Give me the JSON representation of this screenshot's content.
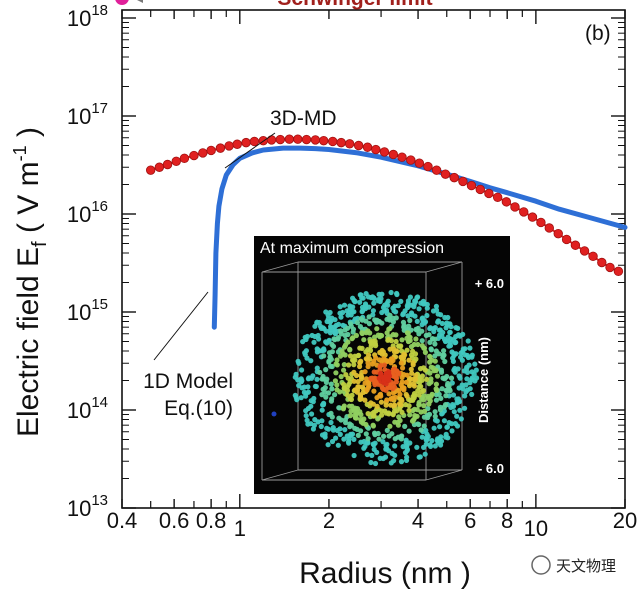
{
  "chart_data": {
    "type": "line",
    "panel_label": "(b)",
    "xlabel": "Radius (nm )",
    "ylabel_main": "Electric field E",
    "ylabel_sub": "f",
    "ylabel_units": "( V m",
    "ylabel_units_exp": "-1",
    "ylabel_units_close": ")",
    "x_scale": "log",
    "y_scale": "log",
    "xlim": [
      0.4,
      20
    ],
    "ylim": [
      10000000000000.0,
      1e+18
    ],
    "x_ticks": [
      {
        "value": 0.4,
        "label": "0.4",
        "major": false
      },
      {
        "value": 0.6,
        "label": "0.6",
        "major": false
      },
      {
        "value": 0.8,
        "label": "0.8",
        "major": false
      },
      {
        "value": 1,
        "label": "1",
        "major": true
      },
      {
        "value": 2,
        "label": "2",
        "major": false
      },
      {
        "value": 4,
        "label": "4",
        "major": false
      },
      {
        "value": 6,
        "label": "6",
        "major": false
      },
      {
        "value": 8,
        "label": "8",
        "major": false
      },
      {
        "value": 10,
        "label": "10",
        "major": true
      },
      {
        "value": 20,
        "label": "20",
        "major": false
      }
    ],
    "y_ticks": [
      {
        "exp": 13,
        "base": "10",
        "sup": "13"
      },
      {
        "exp": 14,
        "base": "10",
        "sup": "14"
      },
      {
        "exp": 15,
        "base": "10",
        "sup": "15"
      },
      {
        "exp": 16,
        "base": "10",
        "sup": "16"
      },
      {
        "exp": 17,
        "base": "10",
        "sup": "17"
      },
      {
        "exp": 18,
        "base": "10",
        "sup": "18"
      }
    ],
    "series": [
      {
        "name": "3D-MD",
        "color": "#e02020",
        "style": "markers+line",
        "x": [
          0.5,
          0.535,
          0.57,
          0.61,
          0.65,
          0.7,
          0.75,
          0.8,
          0.86,
          0.92,
          0.98,
          1.05,
          1.12,
          1.2,
          1.28,
          1.37,
          1.47,
          1.57,
          1.68,
          1.8,
          1.92,
          2.06,
          2.2,
          2.35,
          2.52,
          2.7,
          2.88,
          3.08,
          3.3,
          3.53,
          3.78,
          4.04,
          4.32,
          4.62,
          4.95,
          5.3,
          5.67,
          6.06,
          6.49,
          6.94,
          7.43,
          7.95,
          8.5,
          9.1,
          9.74,
          10.4,
          11.1,
          11.9,
          12.7,
          13.6,
          14.6,
          15.6,
          16.7,
          17.8,
          19.0
        ],
        "y": [
          2.8e+16,
          3e+16,
          3.2e+16,
          3.45e+16,
          3.7e+16,
          3.95e+16,
          4.2e+16,
          4.45e+16,
          4.7e+16,
          4.95e+16,
          5.15e+16,
          5.35e+16,
          5.5e+16,
          5.6e+16,
          5.7e+16,
          5.75e+16,
          5.8e+16,
          5.8e+16,
          5.75e+16,
          5.7e+16,
          5.6e+16,
          5.5e+16,
          5.35e+16,
          5.2e+16,
          5e+16,
          4.8e+16,
          4.55e+16,
          4.3e+16,
          4.05e+16,
          3.8e+16,
          3.55e+16,
          3.3e+16,
          3.05e+16,
          2.8e+16,
          2.55e+16,
          2.35e+16,
          2.15e+16,
          1.95e+16,
          1.78e+16,
          1.62e+16,
          1.48e+16,
          1.33e+16,
          1.18e+16,
          1.05e+16,
          9300000000000000.0,
          8200000000000000.0,
          7200000000000000.0,
          6300000000000000.0,
          5500000000000000.0,
          4800000000000000.0,
          4200000000000000.0,
          3700000000000000.0,
          3200000000000000.0,
          2850000000000000.0,
          2600000000000000.0
        ]
      },
      {
        "name": "1D Model Eq.(10)",
        "color": "#2e6fd6",
        "style": "line",
        "x": [
          0.82,
          0.825,
          0.83,
          0.84,
          0.85,
          0.87,
          0.9,
          0.95,
          1.0,
          1.1,
          1.2,
          1.4,
          1.6,
          1.8,
          2.0,
          2.5,
          3.0,
          4.0,
          5.0,
          6.0,
          7.0,
          8.0,
          10.0,
          12.0,
          15.0,
          20.0
        ],
        "y": [
          700000000000000.0,
          1500000000000000.0,
          4000000000000000.0,
          8000000000000000.0,
          1.2e+16,
          1.8e+16,
          2.5e+16,
          3.2e+16,
          3.7e+16,
          4.2e+16,
          4.5e+16,
          4.7e+16,
          4.7e+16,
          4.65e+16,
          4.55e+16,
          4.2e+16,
          3.8e+16,
          3.1e+16,
          2.55e+16,
          2.15e+16,
          1.85e+16,
          1.65e+16,
          1.35e+16,
          1.12e+16,
          9300000000000000.0,
          7300000000000000.0
        ]
      }
    ],
    "annotations": {
      "schwinger_label": "Schwinger limit",
      "schwinger_point": {
        "x": 0.4,
        "y": 1.6e+18,
        "color": "#e0209a"
      },
      "md_label": "3D-MD",
      "model_label_line1": "1D Model",
      "model_label_line2": "Eq.(10)"
    },
    "inset": {
      "title": "At maximum compression",
      "top_label": "+ 6.0",
      "bottom_label": "- 6.0",
      "axis_label": "Distance (nm)"
    }
  },
  "watermark": "天文物理"
}
